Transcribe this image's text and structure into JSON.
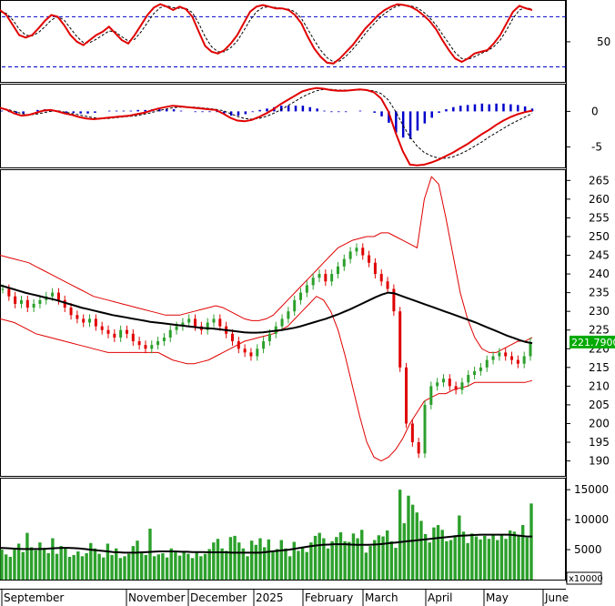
{
  "chart_data": {
    "type": "line",
    "x_labels": [
      "September",
      "November",
      "December",
      "2025",
      "February",
      "March",
      "April",
      "May",
      "June"
    ],
    "last_price": "221.7900",
    "volume_multiplier": "x10000",
    "colors": {
      "up": "#2ca02c",
      "down": "#e00000",
      "ma": "#000000",
      "band": "#e00000",
      "signal": "#0000cc",
      "last_label_bg": "#00aa00"
    },
    "panels": [
      {
        "name": "stochastic",
        "y_ticks": [
          50
        ],
        "ref_lines": [
          80,
          20
        ],
        "ylim": [
          0,
          100
        ],
        "k": [
          88,
          82,
          70,
          58,
          55,
          58,
          66,
          75,
          82,
          80,
          70,
          58,
          50,
          46,
          52,
          58,
          62,
          68,
          60,
          52,
          48,
          58,
          70,
          82,
          91,
          95,
          92,
          88,
          92,
          89,
          80,
          62,
          45,
          38,
          36,
          40,
          48,
          58,
          72,
          86,
          92,
          94,
          92,
          90,
          90,
          88,
          82,
          72,
          56,
          42,
          32,
          25,
          24,
          30,
          38,
          46,
          56,
          66,
          74,
          82,
          88,
          92,
          95,
          94,
          92,
          88,
          82,
          75,
          65,
          52,
          40,
          30,
          26,
          30,
          36,
          38,
          40,
          48,
          58,
          72,
          86,
          93,
          90,
          88
        ],
        "d": [
          86,
          84,
          76,
          65,
          58,
          57,
          61,
          68,
          76,
          80,
          76,
          66,
          56,
          49,
          49,
          53,
          58,
          63,
          62,
          56,
          51,
          53,
          62,
          73,
          84,
          91,
          93,
          91,
          90,
          90,
          85,
          72,
          56,
          44,
          38,
          38,
          43,
          51,
          63,
          76,
          86,
          91,
          92,
          91,
          90,
          89,
          86,
          78,
          65,
          52,
          40,
          31,
          26,
          27,
          33,
          41,
          50,
          60,
          69,
          77,
          84,
          89,
          93,
          94,
          93,
          91,
          86,
          79,
          70,
          59,
          48,
          37,
          30,
          29,
          32,
          36,
          39,
          44,
          52,
          64,
          78,
          88,
          91,
          89
        ]
      },
      {
        "name": "macd",
        "y_ticks": [
          0,
          -5
        ],
        "ylim": [
          -7.6,
          3.7
        ],
        "macd": [
          0.5,
          0.2,
          -0.3,
          -0.6,
          -0.5,
          -0.2,
          0.1,
          0.2,
          0.0,
          -0.3,
          -0.5,
          -0.8,
          -1.0,
          -1.1,
          -1.0,
          -0.9,
          -0.8,
          -0.7,
          -0.6,
          -0.4,
          -0.2,
          0.1,
          0.4,
          0.6,
          0.8,
          0.7,
          0.6,
          0.5,
          0.4,
          0.3,
          0.2,
          -0.3,
          -0.9,
          -1.3,
          -1.4,
          -1.2,
          -0.8,
          -0.3,
          0.3,
          1.0,
          1.6,
          2.2,
          2.8,
          3.1,
          3.3,
          3.2,
          3.0,
          2.9,
          2.9,
          3.0,
          3.1,
          3.0,
          2.7,
          1.8,
          0.0,
          -3.0,
          -5.6,
          -7.5,
          -7.6,
          -7.5,
          -7.2,
          -6.8,
          -6.3,
          -5.8,
          -5.2,
          -4.6,
          -3.9,
          -3.2,
          -2.6,
          -1.9,
          -1.3,
          -0.8,
          -0.4,
          -0.1,
          0.1
        ],
        "signal": [
          0.4,
          0.3,
          0.0,
          -0.3,
          -0.5,
          -0.4,
          -0.2,
          0.0,
          0.1,
          -0.1,
          -0.3,
          -0.5,
          -0.7,
          -0.9,
          -1.0,
          -1.0,
          -0.9,
          -0.8,
          -0.7,
          -0.6,
          -0.4,
          -0.2,
          0.1,
          0.3,
          0.5,
          0.6,
          0.6,
          0.6,
          0.5,
          0.4,
          0.3,
          0.1,
          -0.3,
          -0.7,
          -1.0,
          -1.1,
          -1.0,
          -0.7,
          -0.3,
          0.2,
          0.8,
          1.4,
          2.0,
          2.5,
          2.9,
          3.1,
          3.1,
          3.0,
          3.0,
          3.0,
          3.0,
          3.0,
          2.9,
          2.5,
          1.6,
          0.0,
          -1.9,
          -3.6,
          -4.9,
          -5.8,
          -6.3,
          -6.6,
          -6.6,
          -6.4,
          -6.0,
          -5.5,
          -4.9,
          -4.3,
          -3.6,
          -3.0,
          -2.4,
          -1.8,
          -1.3,
          -0.8,
          -0.3
        ],
        "histogram": [
          0.1,
          -0.1,
          -0.3,
          -0.3,
          0.0,
          0.2,
          0.3,
          0.2,
          -0.1,
          -0.2,
          -0.2,
          -0.3,
          -0.3,
          -0.2,
          0.0,
          0.1,
          0.1,
          0.1,
          0.1,
          0.2,
          0.2,
          0.3,
          0.3,
          0.3,
          0.3,
          0.1,
          0.0,
          -0.1,
          -0.1,
          -0.1,
          -0.1,
          -0.4,
          -0.6,
          -0.6,
          -0.4,
          -0.1,
          0.2,
          0.4,
          0.6,
          0.8,
          0.8,
          0.8,
          0.8,
          0.6,
          0.4,
          0.1,
          -0.1,
          -0.1,
          -0.1,
          0.0,
          0.1,
          0.0,
          -0.2,
          -0.7,
          -1.6,
          -3.0,
          -3.7,
          -3.9,
          -2.7,
          -1.7,
          -0.9,
          -0.2,
          0.3,
          0.6,
          0.8,
          0.9,
          1.0,
          1.1,
          1.0,
          1.1,
          1.1,
          1.0,
          0.9,
          0.7,
          0.4
        ]
      },
      {
        "name": "price",
        "y_ticks": [
          265,
          260,
          255,
          250,
          245,
          240,
          235,
          230,
          225,
          220,
          215,
          210,
          205,
          200,
          195,
          190
        ],
        "ylim": [
          186,
          268
        ],
        "close": [
          236,
          234,
          232,
          233,
          231,
          232,
          233,
          234,
          235,
          233,
          231,
          229,
          228,
          227,
          228,
          226,
          225,
          224,
          223,
          225,
          224,
          222,
          221,
          220,
          221,
          222,
          223,
          225,
          226,
          227,
          228,
          226,
          225,
          227,
          228,
          226,
          224,
          222,
          220,
          219,
          218,
          220,
          222,
          224,
          226,
          228,
          230,
          233,
          235,
          237,
          239,
          240,
          238,
          240,
          242,
          244,
          246,
          247,
          245,
          243,
          240,
          238,
          236,
          230,
          215,
          200,
          195,
          192,
          205,
          210,
          211,
          212,
          210,
          209,
          211,
          213,
          214,
          215,
          217,
          218,
          219,
          218,
          217,
          216,
          218,
          221.79
        ],
        "ma": [
          237,
          236.5,
          236,
          235.5,
          235,
          234.6,
          234.2,
          233.8,
          233.4,
          233,
          232.5,
          232,
          231.5,
          231,
          230.6,
          230.2,
          229.8,
          229.4,
          229,
          228.7,
          228.4,
          228.1,
          227.8,
          227.5,
          227.2,
          227,
          226.8,
          226.6,
          226.4,
          226.2,
          226,
          225.8,
          225.6,
          225.5,
          225.4,
          225.2,
          225,
          224.8,
          224.6,
          224.4,
          224.3,
          224.3,
          224.4,
          224.6,
          224.8,
          225,
          225.3,
          225.6,
          226,
          226.5,
          227,
          227.5,
          228,
          228.6,
          229.2,
          229.9,
          230.6,
          231.4,
          232.2,
          233,
          233.8,
          234.5,
          235,
          234.8,
          234.2,
          233.6,
          233,
          232.4,
          231.8,
          231.2,
          230.6,
          230,
          229.4,
          228.8,
          228.2,
          227.6,
          227,
          226.3,
          225.6,
          224.9,
          224.2,
          223.5,
          222.9,
          222.3,
          221.8,
          221.5
        ],
        "bb_upper": [
          245,
          244.5,
          244,
          243.5,
          243,
          242,
          241,
          240,
          239,
          238,
          237,
          236,
          235,
          234,
          233.5,
          233,
          232.5,
          232,
          231.5,
          231,
          230.5,
          230,
          229.5,
          229,
          229,
          229,
          229.5,
          230,
          230.5,
          231,
          231.5,
          231,
          230,
          229,
          228,
          227.5,
          227.5,
          228,
          229,
          231,
          233,
          235,
          237,
          239,
          241,
          243,
          245,
          247,
          248,
          249,
          249.5,
          250,
          250,
          251,
          251,
          250,
          249,
          248,
          247,
          260,
          266,
          264,
          255,
          245,
          235,
          228,
          223,
          220,
          219,
          219,
          220,
          221,
          222,
          222,
          223
        ],
        "bb_lower": [
          228,
          227.5,
          227,
          226,
          225,
          224,
          223.5,
          223,
          222.5,
          222,
          221.5,
          221,
          220.5,
          220,
          219.5,
          219,
          219,
          219,
          219,
          219,
          219,
          219,
          219,
          218,
          217,
          216.5,
          216,
          216,
          216.5,
          217,
          218,
          219,
          220,
          221,
          222,
          222.5,
          223,
          223.5,
          224,
          225,
          226,
          228,
          230,
          232,
          234,
          233,
          230,
          225,
          218,
          210,
          202,
          195,
          191,
          190,
          191,
          193,
          196,
          200,
          203,
          206,
          207,
          208,
          208,
          209,
          209.5,
          210,
          211,
          211,
          211,
          211,
          211,
          211,
          211,
          211,
          211.5
        ]
      },
      {
        "name": "volume",
        "y_ticks": [
          15000,
          10000,
          5000
        ],
        "ylim": [
          0,
          16000
        ],
        "volume": [
          5000,
          4200,
          3800,
          5200,
          6000,
          4600,
          7800,
          5400,
          4900,
          6200,
          5100,
          4400,
          6900,
          4300,
          5600,
          5200,
          3800,
          4100,
          4700,
          3900,
          4400,
          6100,
          5200,
          4300,
          3700,
          6000,
          4100,
          5200,
          3600,
          3900,
          4300,
          5600,
          6500,
          4700,
          4100,
          8500,
          3900,
          4200,
          4400,
          3700,
          5200,
          4700,
          4000,
          4600,
          4300,
          3600,
          4600,
          3900,
          4300,
          5100,
          6200,
          6800,
          5200,
          4800,
          7100,
          7300,
          6200,
          5200,
          3900,
          6500,
          5800,
          6900,
          5400,
          6700,
          4600,
          5100,
          6600,
          5200,
          3900,
          6300,
          4800,
          5500,
          4600,
          6200,
          7300,
          7800,
          6900,
          5200,
          6400,
          7100,
          7900,
          6400,
          6300,
          7700,
          6900,
          8300,
          4500,
          5600,
          6600,
          7400,
          7200,
          8200,
          6400,
          5300,
          15000,
          9400,
          14000,
          12500,
          11200,
          9800,
          7600,
          6200,
          8700,
          9100,
          8300,
          6400,
          6600,
          7400,
          10700,
          8000,
          6100,
          7700,
          7200,
          6700,
          7300,
          6800,
          7500,
          6600,
          7600,
          6800,
          8200,
          8000,
          7200,
          9100,
          7000,
          12700
        ],
        "volume_ma": [
          5300,
          5250,
          5200,
          5150,
          5100,
          5100,
          5100,
          5100,
          5150,
          5200,
          5250,
          5300,
          5300,
          5250,
          5200,
          5100,
          5000,
          4900,
          4800,
          4700,
          4600,
          4550,
          4500,
          4500,
          4500,
          4550,
          4600,
          4650,
          4700,
          4700,
          4700,
          4700,
          4650,
          4650,
          4600,
          4600,
          4600,
          4550,
          4550,
          4550,
          4550,
          4500,
          4500,
          4500,
          4500,
          4500,
          4500,
          4600,
          4700,
          4800,
          4900,
          5000,
          5150,
          5300,
          5450,
          5600,
          5700,
          5800,
          5850,
          5900,
          5900,
          5900,
          5850,
          5800,
          5800,
          5800,
          5850,
          5900,
          6000,
          6100,
          6200,
          6300,
          6400,
          6500,
          6600,
          6700,
          6800,
          6900,
          7000,
          7100,
          7200,
          7300,
          7350,
          7400,
          7450,
          7500,
          7500,
          7500,
          7500,
          7500,
          7500,
          7400,
          7300,
          7200,
          7200
        ]
      }
    ]
  }
}
